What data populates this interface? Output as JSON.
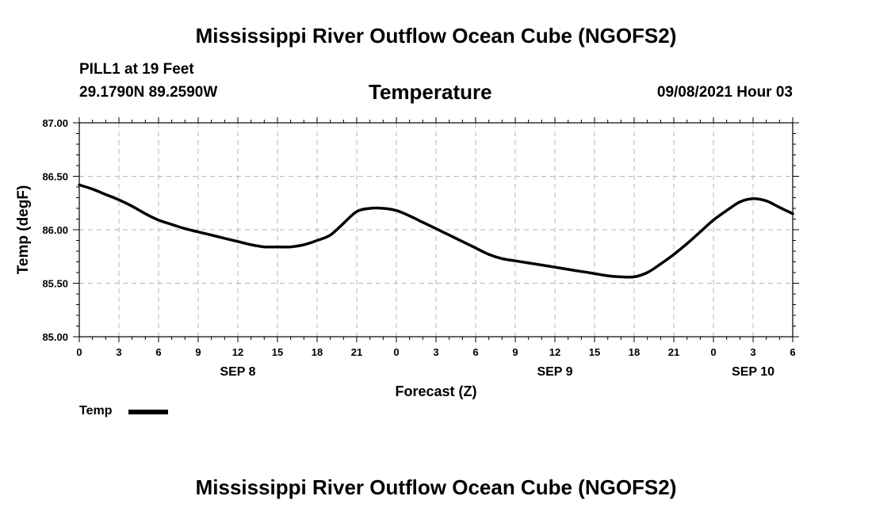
{
  "header": {
    "title": "Mississippi River Outflow Ocean Cube (NGOFS2)",
    "station": "PILL1 at 19 Feet",
    "coords": "29.1790N  89.2590W",
    "variable": "Temperature",
    "datetime": "09/08/2021 Hour 03"
  },
  "footer": {
    "title": "Mississippi River Outflow Ocean Cube (NGOFS2)"
  },
  "legend": {
    "label": "Temp"
  },
  "chart_data": {
    "type": "line",
    "title": "Temperature",
    "xlabel": "Forecast (Z)",
    "ylabel": "Temp (degF)",
    "xlim": [
      0,
      54
    ],
    "ylim": [
      85.0,
      87.0
    ],
    "grid": true,
    "y_ticks": [
      "85.00",
      "85.50",
      "86.00",
      "86.50",
      "87.00"
    ],
    "x_ticks": [
      "0",
      "3",
      "6",
      "9",
      "12",
      "15",
      "18",
      "21",
      "0",
      "3",
      "6",
      "9",
      "12",
      "15",
      "18",
      "21",
      "0",
      "3",
      "6"
    ],
    "day_labels": [
      {
        "label": "SEP 8",
        "hour": 12
      },
      {
        "label": "SEP 9",
        "hour": 36
      },
      {
        "label": "SEP 10",
        "hour": 51
      }
    ],
    "series": [
      {
        "name": "Temp",
        "color": "#000000",
        "x": [
          0,
          1,
          2,
          3,
          4,
          5,
          6,
          7,
          8,
          9,
          10,
          11,
          12,
          13,
          14,
          15,
          16,
          17,
          18,
          19,
          20,
          21,
          22,
          23,
          24,
          25,
          26,
          27,
          28,
          29,
          30,
          31,
          32,
          33,
          34,
          35,
          36,
          37,
          38,
          39,
          40,
          41,
          42,
          43,
          44,
          45,
          46,
          47,
          48,
          49,
          50,
          51,
          52,
          53,
          54
        ],
        "y": [
          86.42,
          86.38,
          86.33,
          86.28,
          86.22,
          86.15,
          86.09,
          86.05,
          86.01,
          85.98,
          85.95,
          85.92,
          85.89,
          85.86,
          85.84,
          85.84,
          85.84,
          85.86,
          85.9,
          85.95,
          86.06,
          86.17,
          86.2,
          86.2,
          86.18,
          86.13,
          86.07,
          86.01,
          85.95,
          85.89,
          85.83,
          85.77,
          85.73,
          85.71,
          85.69,
          85.67,
          85.65,
          85.63,
          85.61,
          85.59,
          85.57,
          85.56,
          85.56,
          85.6,
          85.68,
          85.77,
          85.87,
          85.98,
          86.09,
          86.18,
          86.26,
          86.29,
          86.27,
          86.21,
          86.15
        ]
      }
    ]
  }
}
